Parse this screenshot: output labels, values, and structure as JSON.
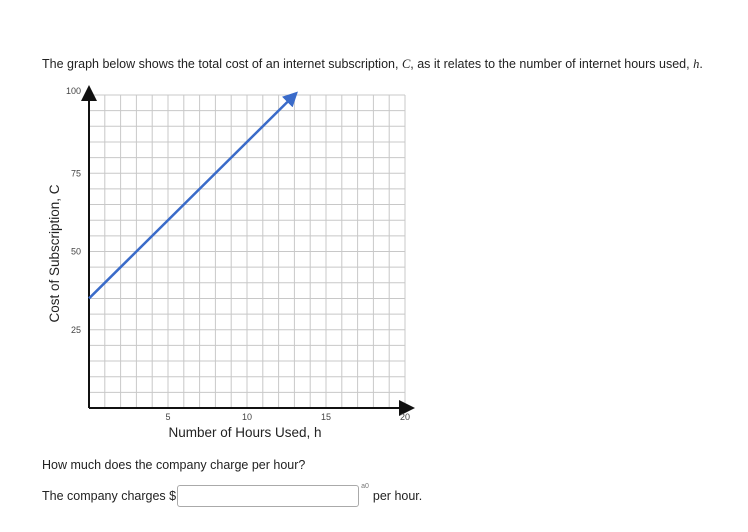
{
  "prompt": {
    "before": "The graph below shows the total cost of an internet subscription, ",
    "var1": "C",
    "middle": ", as it relates to the number of internet hours used, ",
    "var2": "h",
    "end": "."
  },
  "chart_data": {
    "type": "line",
    "xlabel": "Number of Hours Used, h",
    "ylabel": "Cost of Subscription, C",
    "xlim": [
      0,
      20
    ],
    "ylim": [
      0,
      100
    ],
    "x_ticks": [
      5,
      10,
      15,
      20
    ],
    "y_ticks": [
      25,
      50,
      75,
      100
    ],
    "x_grid_step": 1,
    "y_grid_step": 5,
    "grid": true,
    "series": [
      {
        "x": [
          0,
          13
        ],
        "y": [
          35,
          100
        ],
        "color": "#3a6bc9",
        "arrow_end": true
      }
    ]
  },
  "question": "How much does the company charge per hour?",
  "answer": {
    "prefix": "The company charges $",
    "value": "",
    "format_hint": "a0",
    "suffix": "per hour."
  }
}
